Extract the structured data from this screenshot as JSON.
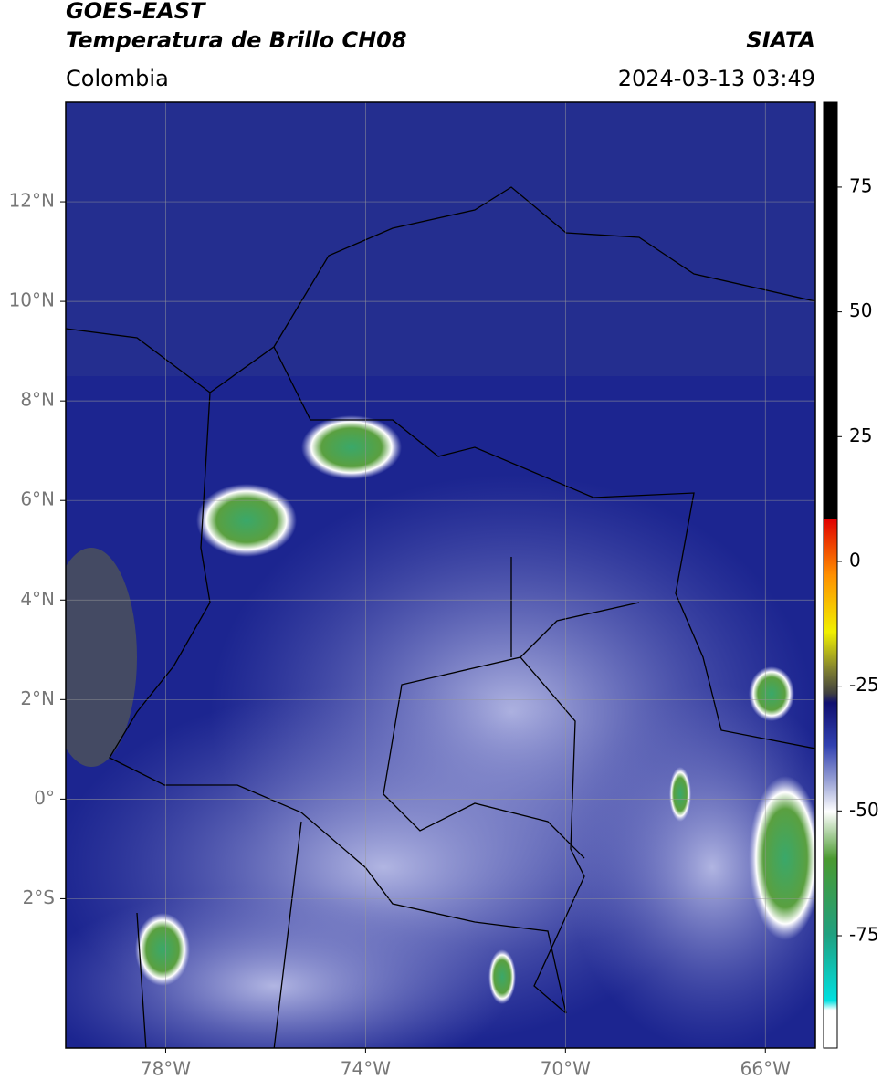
{
  "header": {
    "title": "GOES-EAST",
    "subtitle": "Temperatura de Brillo CH08",
    "source": "SIATA",
    "region": "Colombia",
    "datetime": "2024-03-13 03:49"
  },
  "map": {
    "xlim": [
      -80,
      -65
    ],
    "ylim": [
      -5,
      14
    ],
    "grid": true,
    "xticks": [
      {
        "value": -78,
        "label": "78°W"
      },
      {
        "value": -74,
        "label": "74°W"
      },
      {
        "value": -70,
        "label": "70°W"
      },
      {
        "value": -66,
        "label": "66°W"
      }
    ],
    "yticks": [
      {
        "value": 12,
        "label": "12°N"
      },
      {
        "value": 10,
        "label": "10°N"
      },
      {
        "value": 8,
        "label": "8°N"
      },
      {
        "value": 6,
        "label": "6°N"
      },
      {
        "value": 4,
        "label": "4°N"
      },
      {
        "value": 2,
        "label": "2°N"
      },
      {
        "value": 0,
        "label": "0°"
      },
      {
        "value": -2,
        "label": "2°S"
      }
    ]
  },
  "colorbar": {
    "lim": [
      -97.5,
      92
    ],
    "ticks": [
      75,
      50,
      25,
      0,
      -25,
      -50,
      -75
    ]
  }
}
